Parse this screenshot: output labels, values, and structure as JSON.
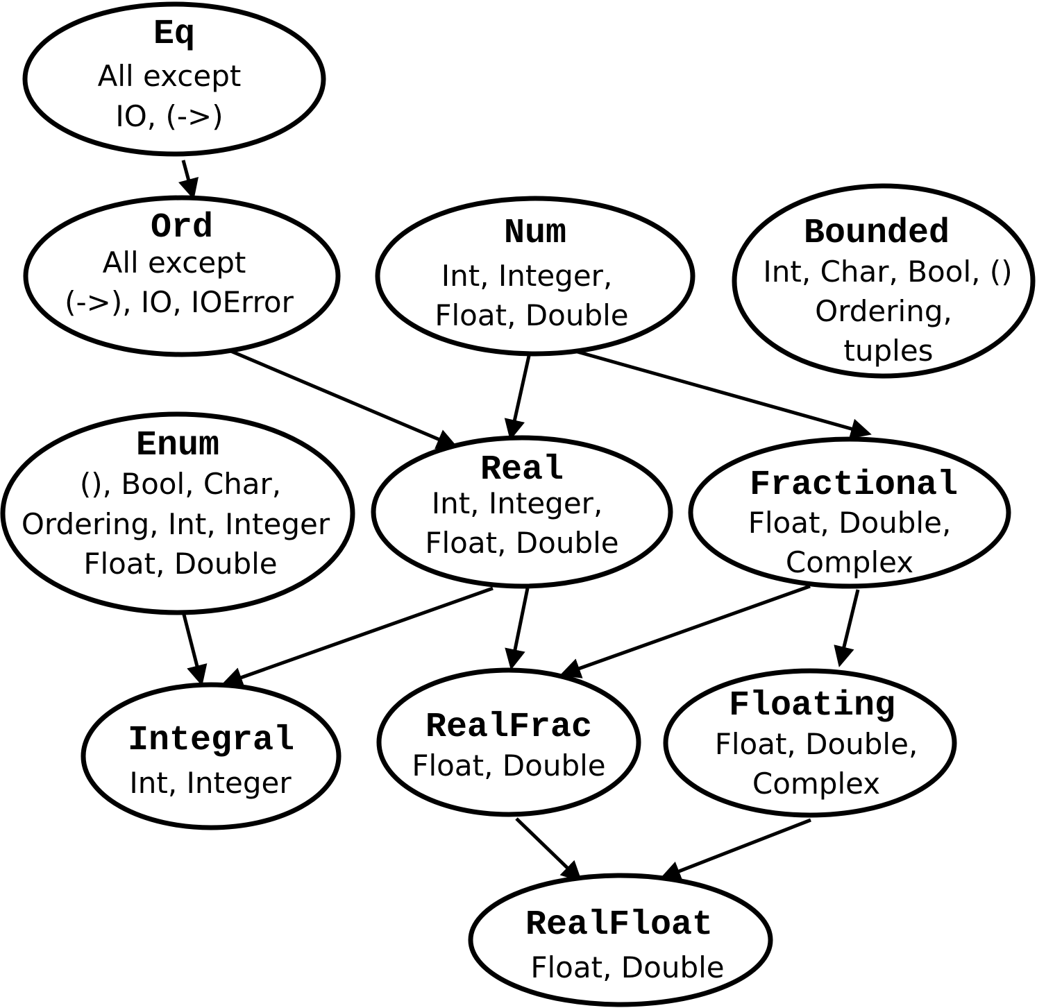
{
  "colors": {
    "stroke": "#000000",
    "fill": "#ffffff",
    "text": "#000000"
  },
  "nodes": {
    "eq": {
      "title": "Eq",
      "line1": "All except",
      "line2": "IO, (->)"
    },
    "ord": {
      "title": "Ord",
      "line1": "All except",
      "line2": "(->), IO, IOError"
    },
    "num": {
      "title": "Num",
      "line1": "Int, Integer,",
      "line2": "Float, Double"
    },
    "bounded": {
      "title": "Bounded",
      "line1": "Int, Char, Bool, ()",
      "line2": "Ordering,",
      "line3": "tuples"
    },
    "enum": {
      "title": "Enum",
      "line1": "(), Bool, Char,",
      "line2": "Ordering, Int, Integer",
      "line3": "Float, Double"
    },
    "real": {
      "title": "Real",
      "line1": "Int, Integer,",
      "line2": "Float, Double"
    },
    "fractional": {
      "title": "Fractional",
      "line1": "Float, Double,",
      "line2": "Complex"
    },
    "integral": {
      "title": "Integral",
      "line1": "Int, Integer"
    },
    "realfrac": {
      "title": "RealFrac",
      "line1": "Float, Double"
    },
    "floating": {
      "title": "Floating",
      "line1": "Float, Double,",
      "line2": "Complex"
    },
    "realfloat": {
      "title": "RealFloat",
      "line1": "Float, Double"
    }
  },
  "edges": [
    {
      "from": "eq",
      "to": "ord"
    },
    {
      "from": "ord",
      "to": "real"
    },
    {
      "from": "num",
      "to": "real"
    },
    {
      "from": "num",
      "to": "fractional"
    },
    {
      "from": "enum",
      "to": "integral"
    },
    {
      "from": "real",
      "to": "integral"
    },
    {
      "from": "real",
      "to": "realfrac"
    },
    {
      "from": "fractional",
      "to": "realfrac"
    },
    {
      "from": "fractional",
      "to": "floating"
    },
    {
      "from": "realfrac",
      "to": "realfloat"
    },
    {
      "from": "floating",
      "to": "realfloat"
    }
  ]
}
